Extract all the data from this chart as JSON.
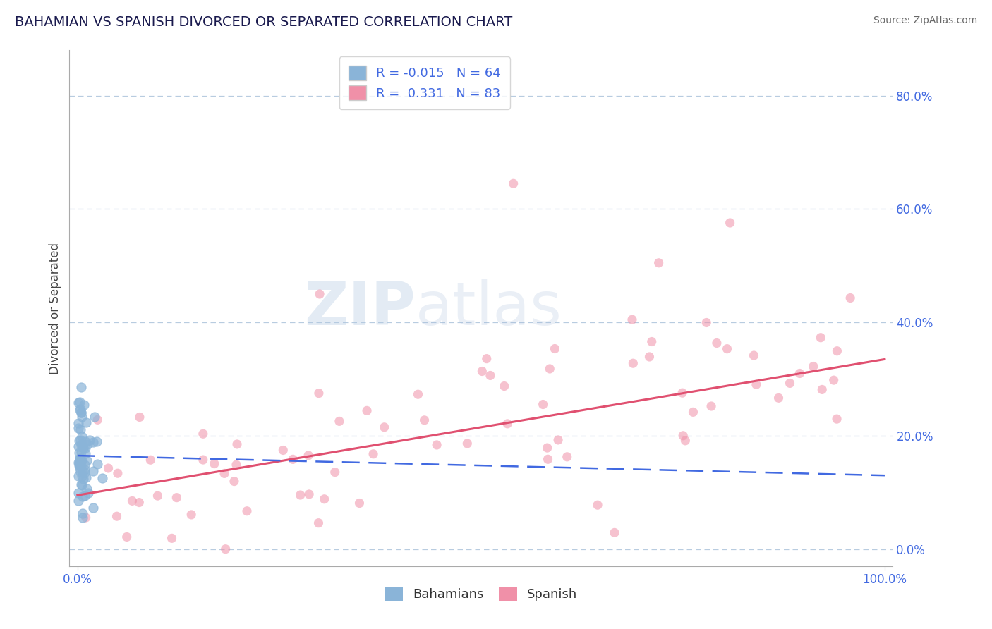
{
  "title": "BAHAMIAN VS SPANISH DIVORCED OR SEPARATED CORRELATION CHART",
  "source": "Source: ZipAtlas.com",
  "ylabel": "Divorced or Separated",
  "xlim": [
    -0.01,
    1.01
  ],
  "ylim": [
    -0.03,
    0.88
  ],
  "xtick_positions": [
    0.0,
    1.0
  ],
  "xtick_labels": [
    "0.0%",
    "100.0%"
  ],
  "ytick_values": [
    0.0,
    0.2,
    0.4,
    0.6,
    0.8
  ],
  "ytick_labels": [
    "0.0%",
    "20.0%",
    "40.0%",
    "60.0%",
    "80.0%"
  ],
  "bahamian_color": "#8ab4d8",
  "spanish_color": "#f090a8",
  "bahamian_line_color": "#4169e1",
  "spanish_line_color": "#e05070",
  "bahamian_R": -0.015,
  "bahamian_N": 64,
  "spanish_R": 0.331,
  "spanish_N": 83,
  "tick_color": "#4169e1",
  "background_color": "#ffffff",
  "grid_color": "#b8cce0",
  "marker_size": 90,
  "marker_alpha": 0.55,
  "spanish_line_start_y": 0.095,
  "spanish_line_end_y": 0.335,
  "bahamian_line_start_y": 0.165,
  "bahamian_line_end_y": 0.13
}
